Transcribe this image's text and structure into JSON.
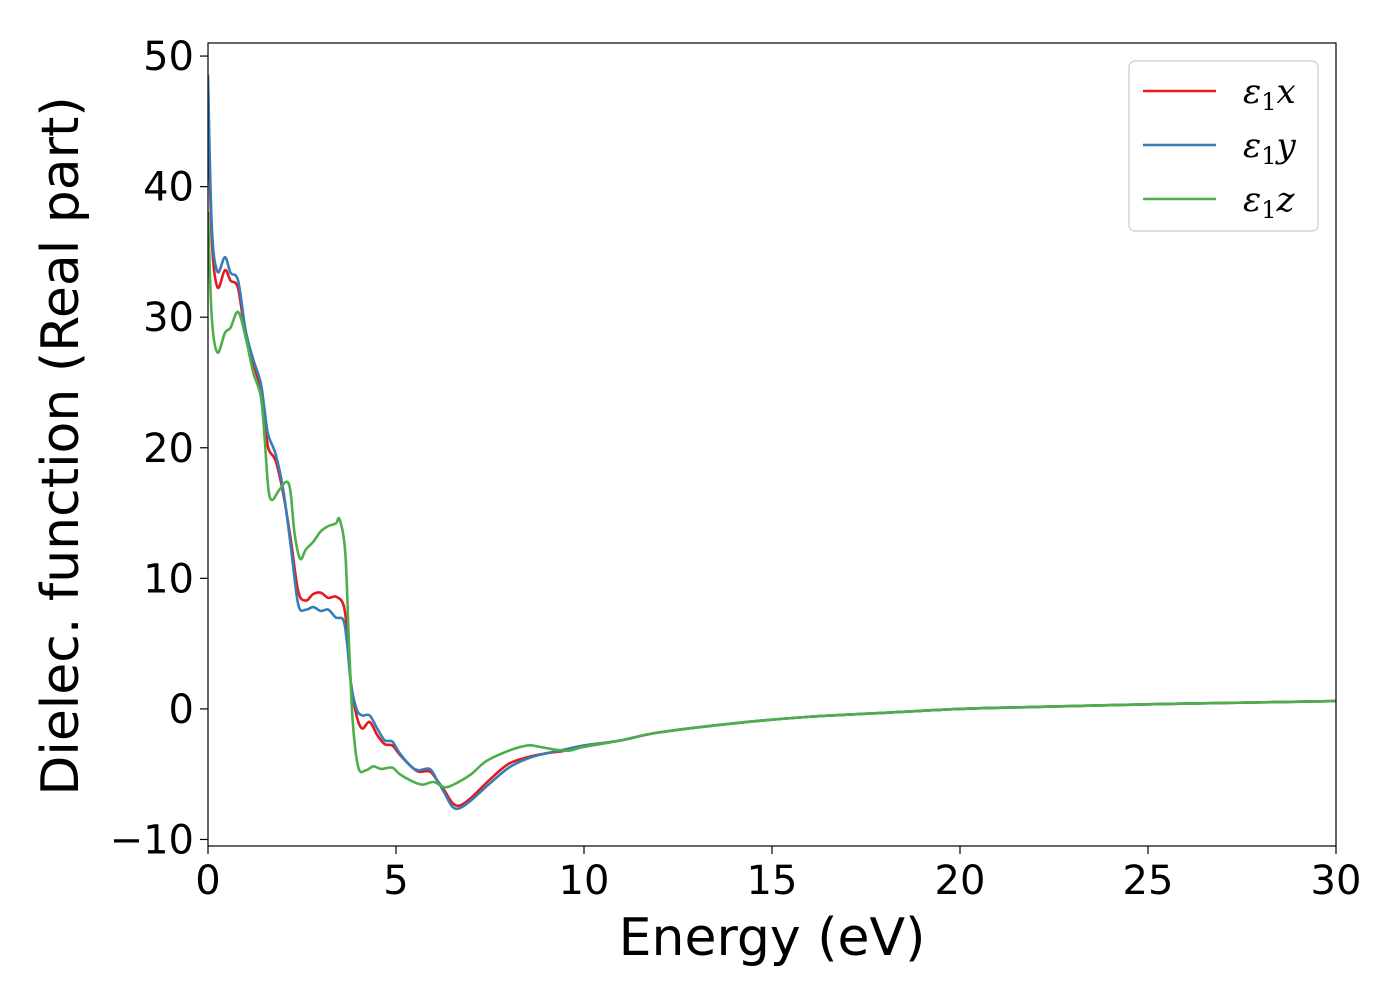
{
  "chart_data": {
    "type": "line",
    "title": "",
    "xlabel": "Energy (eV)",
    "ylabel": "Dielec. function (Real part)",
    "xlim": [
      0,
      30
    ],
    "ylim": [
      -10.5,
      51
    ],
    "xticks": [
      0,
      5,
      10,
      15,
      20,
      25,
      30
    ],
    "xtick_labels": [
      "0",
      "5",
      "10",
      "15",
      "20",
      "25",
      "30"
    ],
    "yticks": [
      -10,
      0,
      10,
      20,
      30,
      40,
      50
    ],
    "ytick_labels": [
      "−10",
      "0",
      "10",
      "20",
      "30",
      "40",
      "50"
    ],
    "grid": false,
    "legend_position": "top-right",
    "series": [
      {
        "name": "ε₁x",
        "legend_base": "ε",
        "legend_sub": "1",
        "legend_tail": "x",
        "color": "#e41a1c",
        "points": [
          [
            0.0,
            47.0
          ],
          [
            0.1,
            36.0
          ],
          [
            0.25,
            32.3
          ],
          [
            0.45,
            33.6
          ],
          [
            0.6,
            32.8
          ],
          [
            0.8,
            32.2
          ],
          [
            1.0,
            28.5
          ],
          [
            1.2,
            26.5
          ],
          [
            1.4,
            24.5
          ],
          [
            1.5,
            22.5
          ],
          [
            1.6,
            20.0
          ],
          [
            1.8,
            19.0
          ],
          [
            2.0,
            16.5
          ],
          [
            2.2,
            13.0
          ],
          [
            2.4,
            9.0
          ],
          [
            2.6,
            8.3
          ],
          [
            2.8,
            8.8
          ],
          [
            3.0,
            8.9
          ],
          [
            3.2,
            8.5
          ],
          [
            3.4,
            8.6
          ],
          [
            3.6,
            8.0
          ],
          [
            3.7,
            6.0
          ],
          [
            3.8,
            2.0
          ],
          [
            3.95,
            -0.5
          ],
          [
            4.1,
            -1.5
          ],
          [
            4.3,
            -1.0
          ],
          [
            4.5,
            -2.0
          ],
          [
            4.7,
            -2.7
          ],
          [
            4.9,
            -2.8
          ],
          [
            5.1,
            -3.5
          ],
          [
            5.4,
            -4.4
          ],
          [
            5.6,
            -4.8
          ],
          [
            5.9,
            -4.8
          ],
          [
            6.1,
            -5.5
          ],
          [
            6.3,
            -6.3
          ],
          [
            6.5,
            -7.2
          ],
          [
            6.7,
            -7.4
          ],
          [
            7.0,
            -6.8
          ],
          [
            7.5,
            -5.4
          ],
          [
            8.0,
            -4.2
          ],
          [
            8.5,
            -3.7
          ],
          [
            9.0,
            -3.4
          ],
          [
            9.5,
            -3.2
          ],
          [
            10.0,
            -2.9
          ],
          [
            11.0,
            -2.4
          ],
          [
            12.0,
            -1.8
          ],
          [
            14.0,
            -1.1
          ],
          [
            16.0,
            -0.6
          ],
          [
            18.0,
            -0.3
          ],
          [
            20.0,
            0.0
          ],
          [
            22.0,
            0.15
          ],
          [
            25.0,
            0.35
          ],
          [
            28.0,
            0.5
          ],
          [
            30.0,
            0.6
          ]
        ]
      },
      {
        "name": "ε₁y",
        "legend_base": "ε",
        "legend_sub": "1",
        "legend_tail": "y",
        "color": "#377eb8",
        "points": [
          [
            0.0,
            48.5
          ],
          [
            0.1,
            37.0
          ],
          [
            0.25,
            33.5
          ],
          [
            0.45,
            34.6
          ],
          [
            0.6,
            33.4
          ],
          [
            0.8,
            32.8
          ],
          [
            1.0,
            29.0
          ],
          [
            1.2,
            26.8
          ],
          [
            1.4,
            25.0
          ],
          [
            1.5,
            23.0
          ],
          [
            1.6,
            21.0
          ],
          [
            1.8,
            19.5
          ],
          [
            2.0,
            16.8
          ],
          [
            2.2,
            12.5
          ],
          [
            2.4,
            8.0
          ],
          [
            2.6,
            7.6
          ],
          [
            2.8,
            7.8
          ],
          [
            3.0,
            7.5
          ],
          [
            3.2,
            7.6
          ],
          [
            3.4,
            7.0
          ],
          [
            3.6,
            6.8
          ],
          [
            3.7,
            5.0
          ],
          [
            3.8,
            2.0
          ],
          [
            3.95,
            0.0
          ],
          [
            4.1,
            -0.5
          ],
          [
            4.3,
            -0.5
          ],
          [
            4.5,
            -1.5
          ],
          [
            4.7,
            -2.4
          ],
          [
            4.9,
            -2.5
          ],
          [
            5.1,
            -3.4
          ],
          [
            5.4,
            -4.4
          ],
          [
            5.6,
            -4.7
          ],
          [
            5.9,
            -4.6
          ],
          [
            6.1,
            -5.5
          ],
          [
            6.3,
            -6.5
          ],
          [
            6.5,
            -7.5
          ],
          [
            6.7,
            -7.6
          ],
          [
            7.0,
            -7.0
          ],
          [
            7.5,
            -5.7
          ],
          [
            8.0,
            -4.5
          ],
          [
            8.5,
            -3.8
          ],
          [
            9.0,
            -3.4
          ],
          [
            9.5,
            -3.1
          ],
          [
            10.0,
            -2.8
          ],
          [
            11.0,
            -2.4
          ],
          [
            12.0,
            -1.8
          ],
          [
            14.0,
            -1.1
          ],
          [
            16.0,
            -0.6
          ],
          [
            18.0,
            -0.3
          ],
          [
            20.0,
            0.0
          ],
          [
            22.0,
            0.15
          ],
          [
            25.0,
            0.35
          ],
          [
            28.0,
            0.5
          ],
          [
            30.0,
            0.6
          ]
        ]
      },
      {
        "name": "ε₁z",
        "legend_base": "ε",
        "legend_sub": "1",
        "legend_tail": "z",
        "color": "#4daf4a",
        "points": [
          [
            0.0,
            38.0
          ],
          [
            0.1,
            30.0
          ],
          [
            0.25,
            27.3
          ],
          [
            0.45,
            28.8
          ],
          [
            0.6,
            29.2
          ],
          [
            0.8,
            30.4
          ],
          [
            1.0,
            28.5
          ],
          [
            1.2,
            25.8
          ],
          [
            1.4,
            24.0
          ],
          [
            1.5,
            21.0
          ],
          [
            1.6,
            17.0
          ],
          [
            1.7,
            16.0
          ],
          [
            1.9,
            16.8
          ],
          [
            2.1,
            17.4
          ],
          [
            2.2,
            16.5
          ],
          [
            2.3,
            13.5
          ],
          [
            2.45,
            11.5
          ],
          [
            2.6,
            12.2
          ],
          [
            2.8,
            12.8
          ],
          [
            3.0,
            13.6
          ],
          [
            3.2,
            14.0
          ],
          [
            3.4,
            14.2
          ],
          [
            3.5,
            14.5
          ],
          [
            3.65,
            12.0
          ],
          [
            3.75,
            5.0
          ],
          [
            3.85,
            -1.0
          ],
          [
            4.0,
            -4.5
          ],
          [
            4.2,
            -4.7
          ],
          [
            4.4,
            -4.4
          ],
          [
            4.6,
            -4.6
          ],
          [
            4.9,
            -4.5
          ],
          [
            5.1,
            -5.0
          ],
          [
            5.4,
            -5.5
          ],
          [
            5.7,
            -5.8
          ],
          [
            6.0,
            -5.6
          ],
          [
            6.3,
            -6.0
          ],
          [
            6.6,
            -5.7
          ],
          [
            7.0,
            -5.0
          ],
          [
            7.4,
            -4.0
          ],
          [
            8.0,
            -3.2
          ],
          [
            8.5,
            -2.8
          ],
          [
            8.8,
            -2.9
          ],
          [
            9.2,
            -3.1
          ],
          [
            9.6,
            -3.2
          ],
          [
            10.0,
            -2.9
          ],
          [
            11.0,
            -2.4
          ],
          [
            12.0,
            -1.8
          ],
          [
            14.0,
            -1.1
          ],
          [
            16.0,
            -0.6
          ],
          [
            18.0,
            -0.3
          ],
          [
            20.0,
            0.0
          ],
          [
            22.0,
            0.15
          ],
          [
            25.0,
            0.35
          ],
          [
            28.0,
            0.5
          ],
          [
            30.0,
            0.6
          ]
        ]
      }
    ]
  }
}
